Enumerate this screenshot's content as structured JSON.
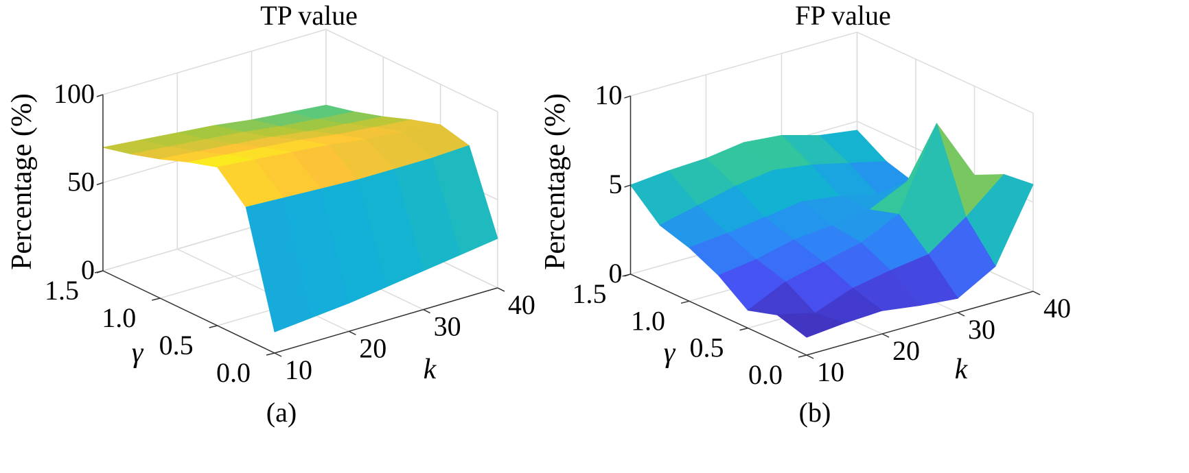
{
  "chart_data": [
    {
      "type": "surface",
      "panel_label": "(a)",
      "title": "TP value",
      "xlabel": "k",
      "ylabel": "γ",
      "zlabel": "Percentage (%)",
      "x_ticks": [
        "10",
        "20",
        "30",
        "40"
      ],
      "y_ticks": [
        "0.0",
        "0.5",
        "1.0",
        "1.5"
      ],
      "z_ticks": [
        "0",
        "50",
        "100"
      ],
      "xlim": [
        10,
        40
      ],
      "ylim": [
        0,
        1.5
      ],
      "zlim": [
        0,
        100
      ],
      "k": [
        10,
        15,
        20,
        25,
        30,
        35,
        40
      ],
      "gamma": [
        0,
        0.25,
        0.5,
        0.75,
        1.0,
        1.25,
        1.5
      ],
      "z": [
        [
          12,
          14,
          16,
          19,
          22,
          25,
          28
        ],
        [
          75,
          74,
          73,
          72,
          72,
          72,
          73
        ],
        [
          90,
          88,
          86,
          84,
          81,
          79,
          77
        ],
        [
          85,
          83,
          81,
          79,
          76,
          74,
          72
        ],
        [
          79,
          77,
          75,
          73,
          70,
          68,
          66
        ],
        [
          74,
          72,
          70,
          68,
          65,
          63,
          61
        ],
        [
          70,
          68,
          66,
          64,
          61,
          59,
          57
        ]
      ],
      "colormap": "parula",
      "grid": true
    },
    {
      "type": "surface",
      "panel_label": "(b)",
      "title": "FP value",
      "xlabel": "k",
      "ylabel": "γ",
      "zlabel": "Percentage (%)",
      "x_ticks": [
        "10",
        "20",
        "30",
        "40"
      ],
      "y_ticks": [
        "0.0",
        "0.5",
        "1.0",
        "1.5"
      ],
      "z_ticks": [
        "0",
        "5",
        "10"
      ],
      "xlim": [
        10,
        40
      ],
      "ylim": [
        0,
        1.5
      ],
      "zlim": [
        0,
        10
      ],
      "k": [
        10,
        15,
        20,
        25,
        30,
        35,
        40
      ],
      "gamma": [
        0,
        0.25,
        0.5,
        0.75,
        1.0,
        1.25,
        1.5
      ],
      "z": [
        [
          1.0,
          1.2,
          1.3,
          1.0,
          0.8,
          2.0,
          6.0
        ],
        [
          1.5,
          1.0,
          1.8,
          2.2,
          2.5,
          4.0,
          5.8
        ],
        [
          1.0,
          2.0,
          2.5,
          3.0,
          4.0,
          8.5,
          5.0
        ],
        [
          2.2,
          2.5,
          3.0,
          3.2,
          3.5,
          4.5,
          3.5
        ],
        [
          3.0,
          3.2,
          3.5,
          3.8,
          3.5,
          3.0,
          3.0
        ],
        [
          3.5,
          4.0,
          4.5,
          4.8,
          4.5,
          4.0,
          3.5
        ],
        [
          5.0,
          5.2,
          5.3,
          5.6,
          5.4,
          4.8,
          4.5
        ]
      ],
      "colormap": "parula",
      "grid": true
    }
  ]
}
